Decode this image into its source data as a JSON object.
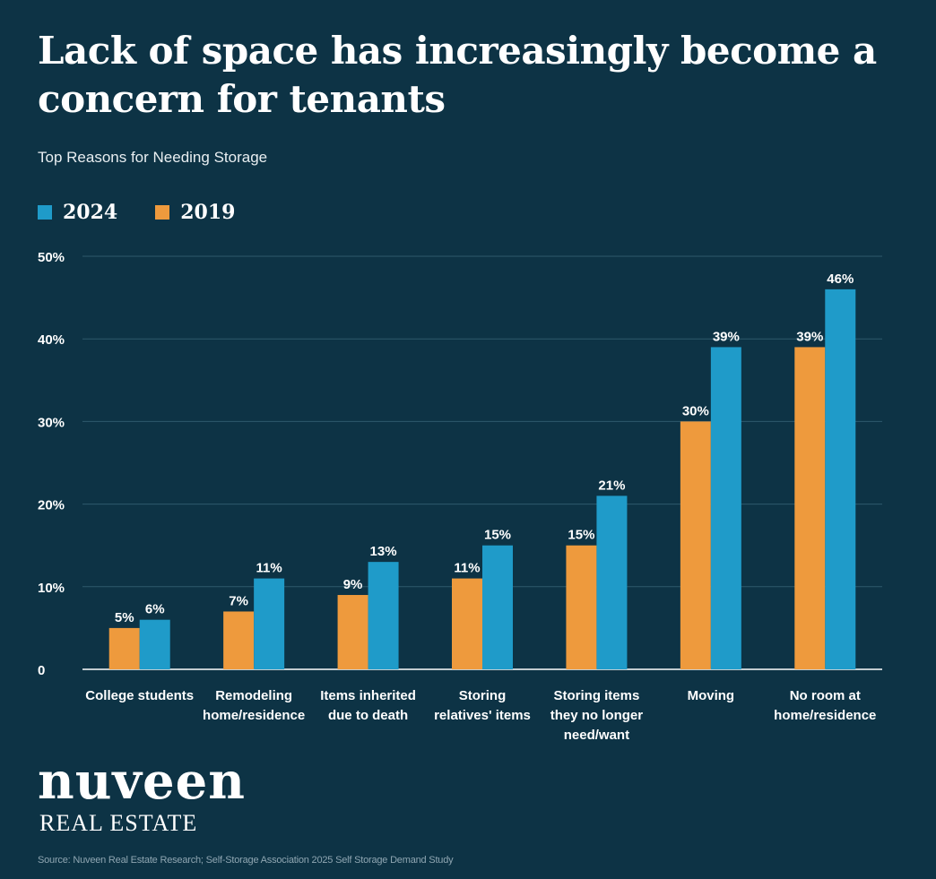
{
  "header": {
    "title": "Lack of space has increasingly become a concern for tenants",
    "subtitle": "Top Reasons for Needing Storage"
  },
  "legend": [
    {
      "label": "2024",
      "color": "#1f9bc9"
    },
    {
      "label": "2019",
      "color": "#ee9a3d"
    }
  ],
  "brand": {
    "name": "nuveen",
    "division": "REAL ESTATE"
  },
  "source": "Source: Nuveen Real Estate Research; Self-Storage Association 2025 Self Storage Demand Study",
  "chart_data": {
    "type": "bar",
    "title": "Top Reasons for Needing Storage",
    "categories": [
      [
        "College students"
      ],
      [
        "Remodeling",
        "home/residence"
      ],
      [
        "Items inherited",
        "due to death"
      ],
      [
        "Storing",
        "relatives' items"
      ],
      [
        "Storing items",
        "they no longer",
        "need/want"
      ],
      [
        "Moving"
      ],
      [
        "No room at",
        "home/residence"
      ]
    ],
    "series": [
      {
        "name": "2019",
        "color": "#ee9a3d",
        "values": [
          5,
          7,
          9,
          11,
          15,
          30,
          39
        ]
      },
      {
        "name": "2024",
        "color": "#1f9bc9",
        "values": [
          6,
          11,
          13,
          15,
          21,
          39,
          46
        ]
      }
    ],
    "yticks": [
      0,
      10,
      20,
      30,
      40,
      50
    ],
    "ytick_labels": [
      "0",
      "10%",
      "20%",
      "30%",
      "40%",
      "50%"
    ],
    "ylim": [
      0,
      50
    ],
    "value_suffix": "%",
    "grid": true,
    "legend_position": "top-left"
  }
}
